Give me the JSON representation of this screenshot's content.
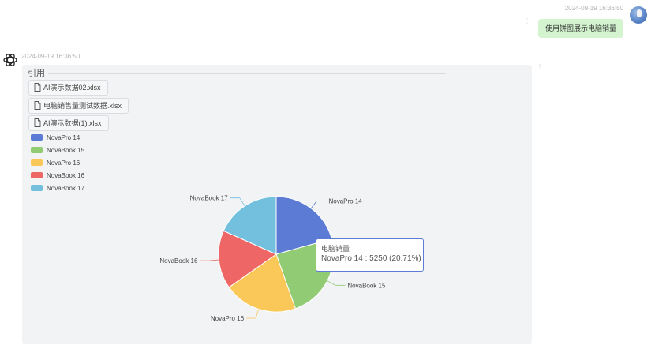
{
  "user_message": {
    "timestamp": "2024-09-19 16:36:50",
    "text": "使用饼图展示电脑销量",
    "menu_glyph": "⋮"
  },
  "bot_message": {
    "timestamp": "2024-09-19 16:36:50",
    "menu_glyph": "⋮",
    "references": {
      "title": "引用",
      "files": [
        "AI演示数据02.xlsx",
        "电脑销售量测试数据.xlsx",
        "AI演示数据(1).xlsx"
      ]
    },
    "tooltip": {
      "title": "电脑销量",
      "body": "NovaPro 14 : 5250 (20.71%)"
    }
  },
  "chart_data": {
    "type": "pie",
    "series_name": "电脑销量",
    "legend_position": "top-left",
    "categories": [
      "NovaPro 14",
      "NovaBook 15",
      "NovaPro 16",
      "NovaBook 16",
      "NovaBook 17"
    ],
    "values": [
      5250,
      6050,
      5250,
      4150,
      4650
    ],
    "colors": [
      "#5b7bd5",
      "#91cc75",
      "#fac858",
      "#ee6666",
      "#73c0de"
    ]
  }
}
